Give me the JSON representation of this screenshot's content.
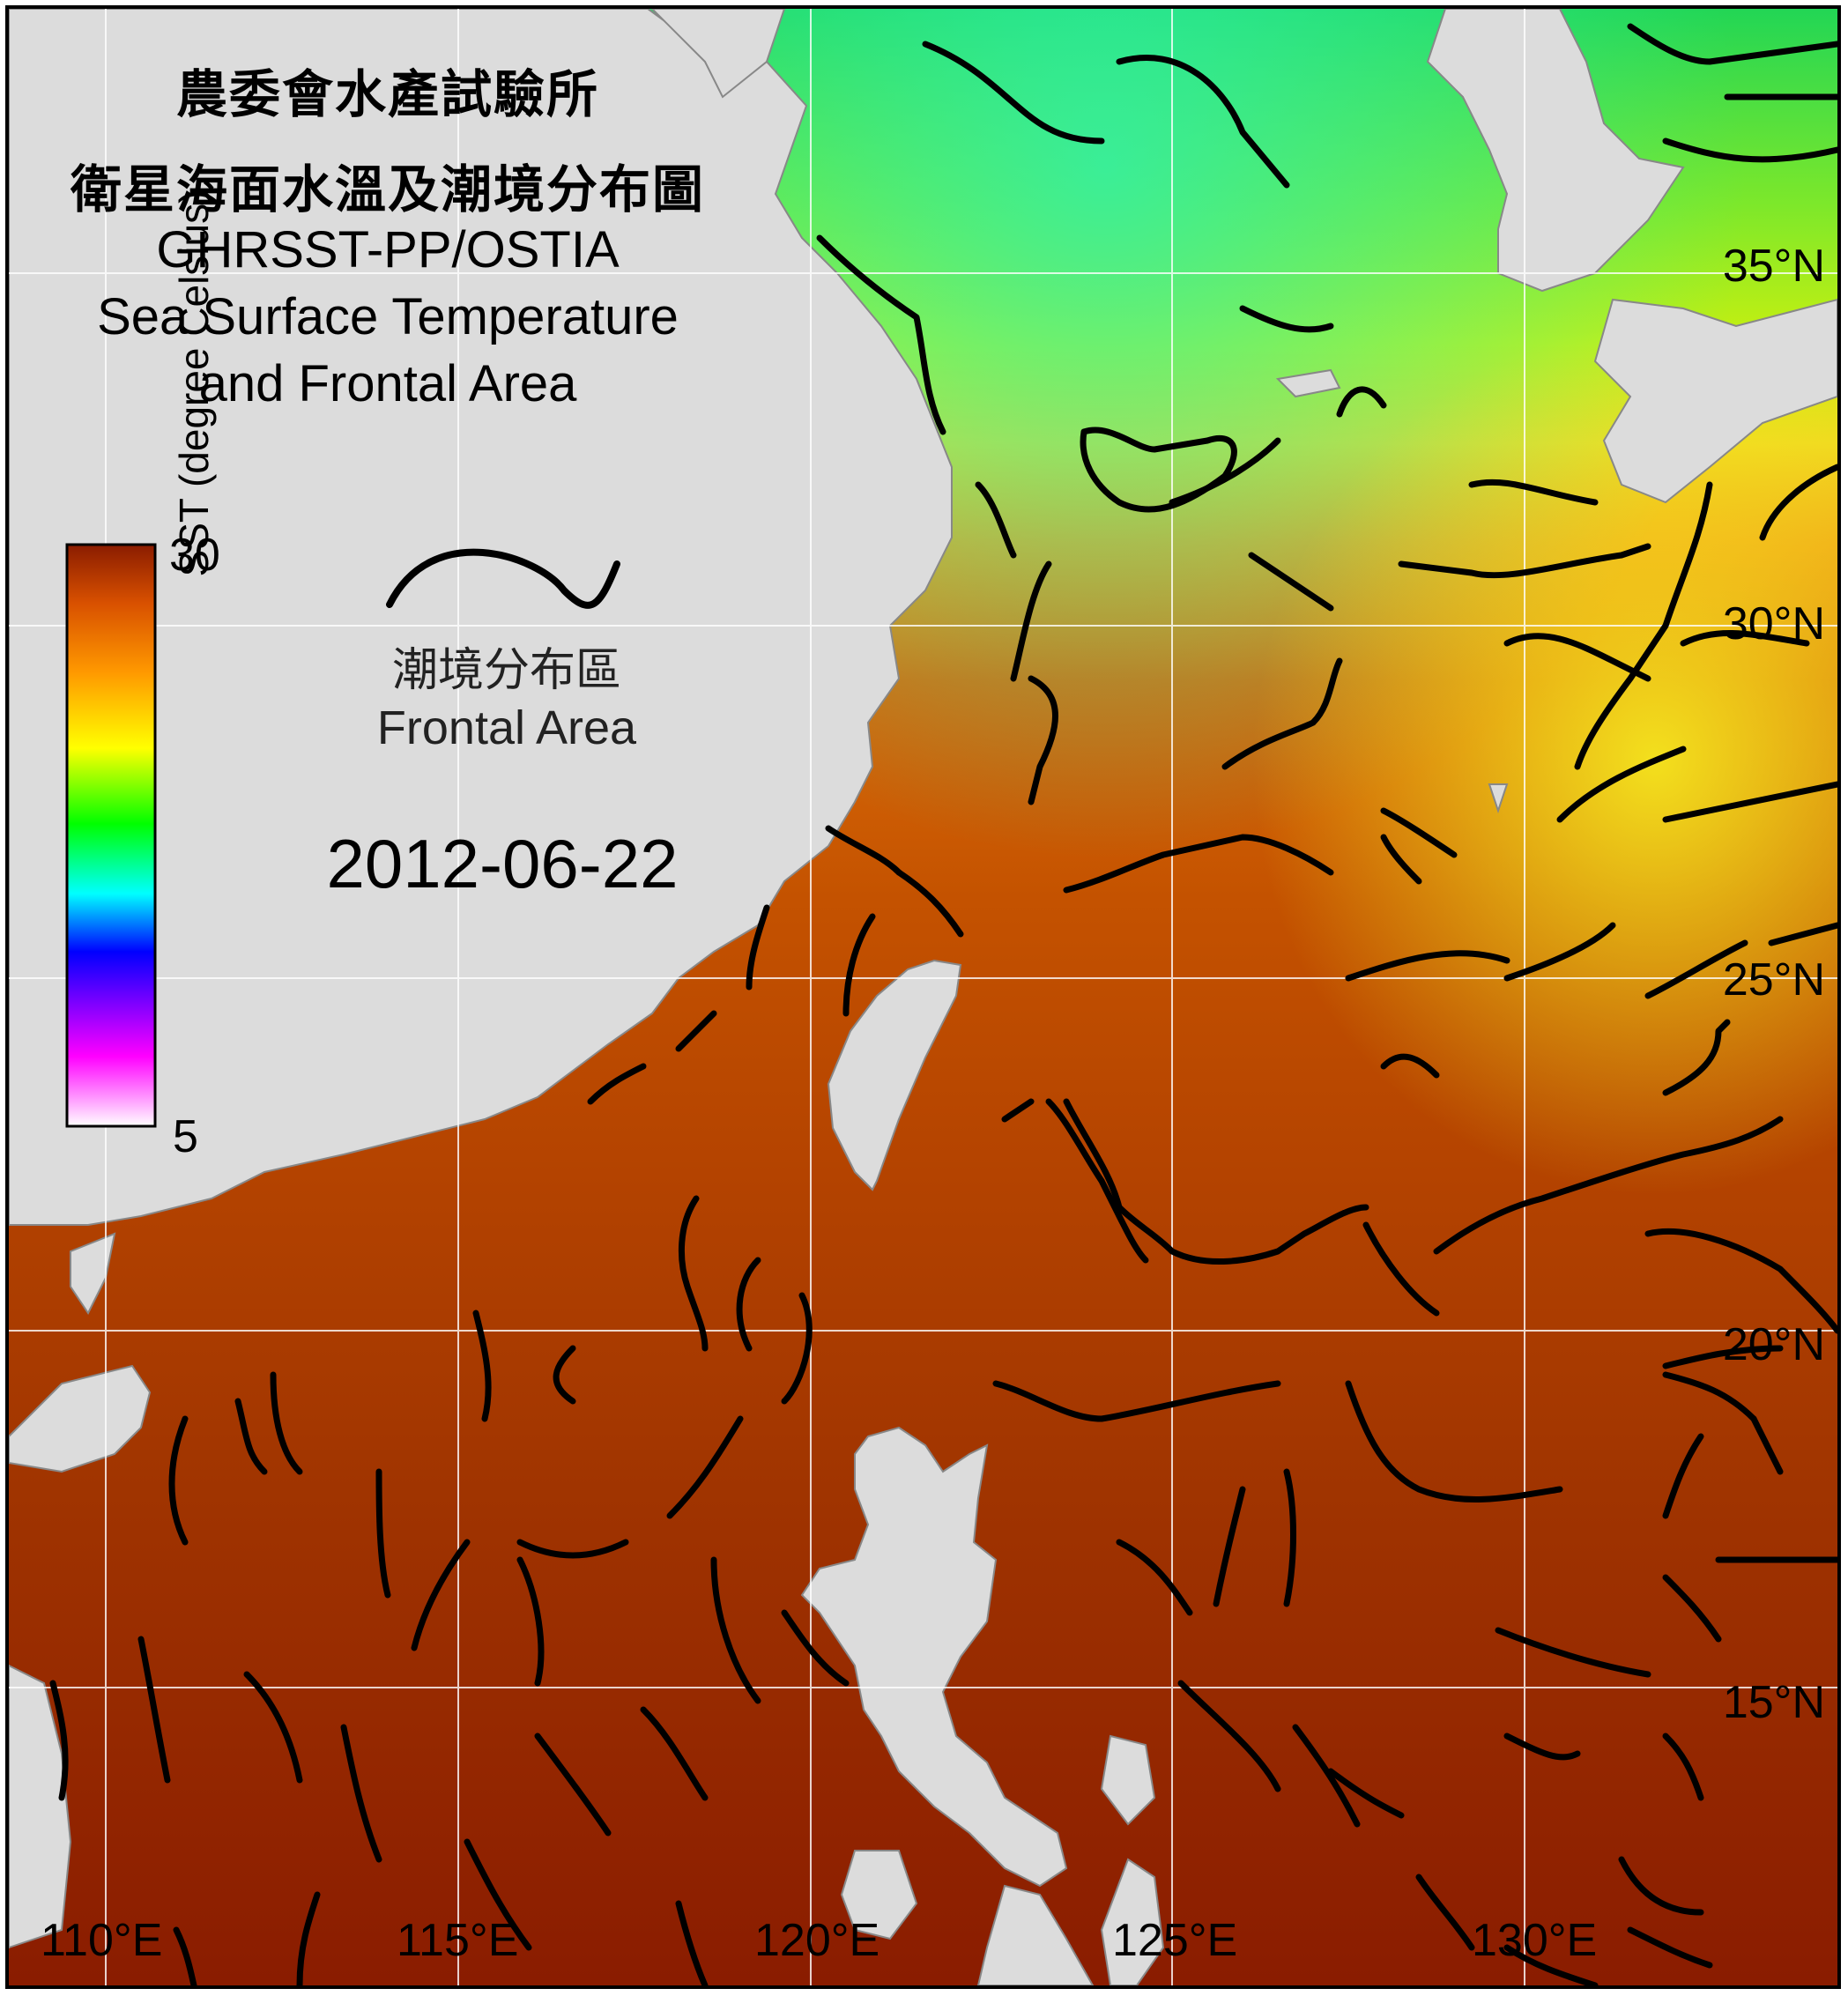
{
  "title": {
    "cn_line1": "農委會水產試驗所",
    "cn_line2": "衛星海面水溫及潮境分布圖",
    "en_line1": "GHRSST-PP/OSTIA",
    "en_line2": "Sea Surface Temperature",
    "en_line3": "and Frontal Area"
  },
  "legend": {
    "colorbar_title": "SST (degree Celsius)",
    "max_label": "30",
    "min_label": "5",
    "frontal_label_cn": "潮境分布區",
    "frontal_label_en": "Frontal Area"
  },
  "date": "2012-06-22",
  "lat_labels": [
    "35°N",
    "30°N",
    "25°N",
    "20°N",
    "15°N"
  ],
  "lon_labels": [
    "110°E",
    "115°E",
    "120°E",
    "125°E",
    "130°E"
  ],
  "colors": {
    "land": "#dcdcdc",
    "front_line": "#000000",
    "grid": "#ffffff",
    "sst_warm": "#8a1c00",
    "sst_mid": "#f08a10",
    "sst_cool": "#a8f000"
  },
  "colorbar_stops": [
    "#ffffff",
    "#ff00ff",
    "#0000ff",
    "#00ffff",
    "#00ff00",
    "#ffff00",
    "#ff9900",
    "#e05a00",
    "#8a1c00"
  ]
}
